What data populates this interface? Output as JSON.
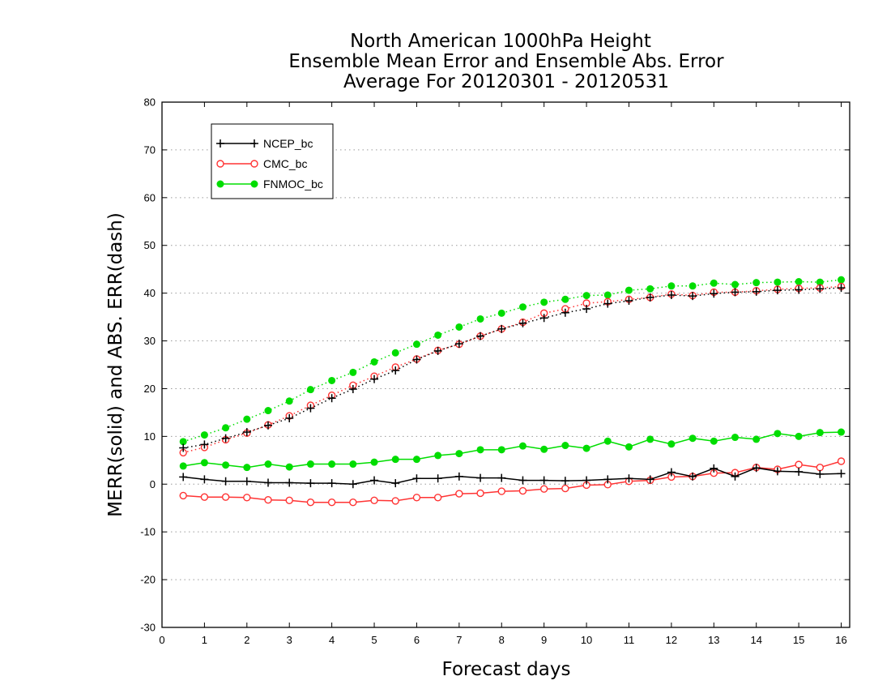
{
  "chart_data": {
    "type": "line",
    "title_lines": [
      "North American 1000hPa Height",
      "Ensemble Mean Error and Ensemble Abs. Error",
      "Average For 20120301 - 20120531"
    ],
    "xlabel": "Forecast days",
    "ylabel": "MERR(solid) and ABS. ERR(dash)",
    "xlim": [
      0,
      16.2
    ],
    "ylim": [
      -30,
      80
    ],
    "x_ticks": [
      0,
      1,
      2,
      3,
      4,
      5,
      6,
      7,
      8,
      9,
      10,
      11,
      12,
      13,
      14,
      15,
      16
    ],
    "y_ticks": [
      -30,
      -20,
      -10,
      0,
      10,
      20,
      30,
      40,
      50,
      60,
      70,
      80
    ],
    "grid": "horizontal dotted",
    "legend_position": "top-left",
    "x": [
      0.5,
      1.0,
      1.5,
      2.0,
      2.5,
      3.0,
      3.5,
      4.0,
      4.5,
      5.0,
      5.5,
      6.0,
      6.5,
      7.0,
      7.5,
      8.0,
      8.5,
      9.0,
      9.5,
      10.0,
      10.5,
      11.0,
      11.5,
      12.0,
      12.5,
      13.0,
      13.5,
      14.0,
      14.5,
      15.0,
      15.5,
      16.0
    ],
    "series": [
      {
        "name": "NCEP_bc",
        "color": "#000000",
        "marker": "plus",
        "merr": [
          1.5,
          1.0,
          0.6,
          0.6,
          0.3,
          0.3,
          0.2,
          0.2,
          0.0,
          0.8,
          0.2,
          1.2,
          1.2,
          1.6,
          1.3,
          1.3,
          0.8,
          0.8,
          0.7,
          0.8,
          1.0,
          1.2,
          1.0,
          2.5,
          1.6,
          3.3,
          1.6,
          3.4,
          2.7,
          2.6,
          2.1,
          2.2
        ],
        "abs_err": [
          7.6,
          8.3,
          9.6,
          10.9,
          12.3,
          13.8,
          15.9,
          18.0,
          19.9,
          22.0,
          23.8,
          26.1,
          27.9,
          29.4,
          31.0,
          32.5,
          33.7,
          34.8,
          35.9,
          36.7,
          37.8,
          38.4,
          39.1,
          39.6,
          39.4,
          39.9,
          40.2,
          40.3,
          40.6,
          40.7,
          40.9,
          41.1
        ]
      },
      {
        "name": "CMC_bc",
        "color": "#ff3333",
        "marker": "open-circle",
        "merr": [
          -2.4,
          -2.7,
          -2.7,
          -2.8,
          -3.3,
          -3.4,
          -3.8,
          -3.8,
          -3.8,
          -3.4,
          -3.5,
          -2.8,
          -2.8,
          -2.0,
          -1.9,
          -1.5,
          -1.4,
          -1.0,
          -0.9,
          -0.2,
          -0.1,
          0.6,
          0.8,
          1.5,
          1.6,
          2.3,
          2.4,
          3.5,
          3.1,
          4.1,
          3.5,
          4.8
        ],
        "abs_err": [
          6.6,
          7.7,
          9.3,
          10.7,
          12.4,
          14.3,
          16.5,
          18.6,
          20.7,
          22.6,
          24.5,
          26.2,
          28.0,
          29.3,
          31.0,
          32.5,
          33.9,
          35.8,
          36.7,
          37.9,
          38.2,
          38.7,
          39.1,
          39.8,
          39.5,
          40.2,
          40.2,
          40.5,
          40.8,
          41.0,
          41.1,
          41.4
        ]
      },
      {
        "name": "FNMOC_bc",
        "color": "#00dd00",
        "marker": "filled-circle",
        "merr": [
          3.8,
          4.5,
          4.0,
          3.5,
          4.2,
          3.6,
          4.2,
          4.2,
          4.2,
          4.6,
          5.2,
          5.2,
          6.0,
          6.4,
          7.2,
          7.2,
          8.0,
          7.3,
          8.1,
          7.5,
          9.0,
          7.8,
          9.4,
          8.4,
          9.6,
          9.0,
          9.8,
          9.4,
          10.6,
          10.0,
          10.8,
          10.9
        ],
        "abs_err": [
          8.9,
          10.3,
          11.8,
          13.6,
          15.4,
          17.4,
          19.8,
          21.7,
          23.4,
          25.6,
          27.5,
          29.3,
          31.2,
          32.9,
          34.6,
          35.8,
          37.1,
          38.1,
          38.7,
          39.5,
          39.6,
          40.6,
          40.9,
          41.5,
          41.5,
          42.1,
          41.8,
          42.2,
          42.3,
          42.4,
          42.3,
          42.8
        ]
      }
    ]
  }
}
